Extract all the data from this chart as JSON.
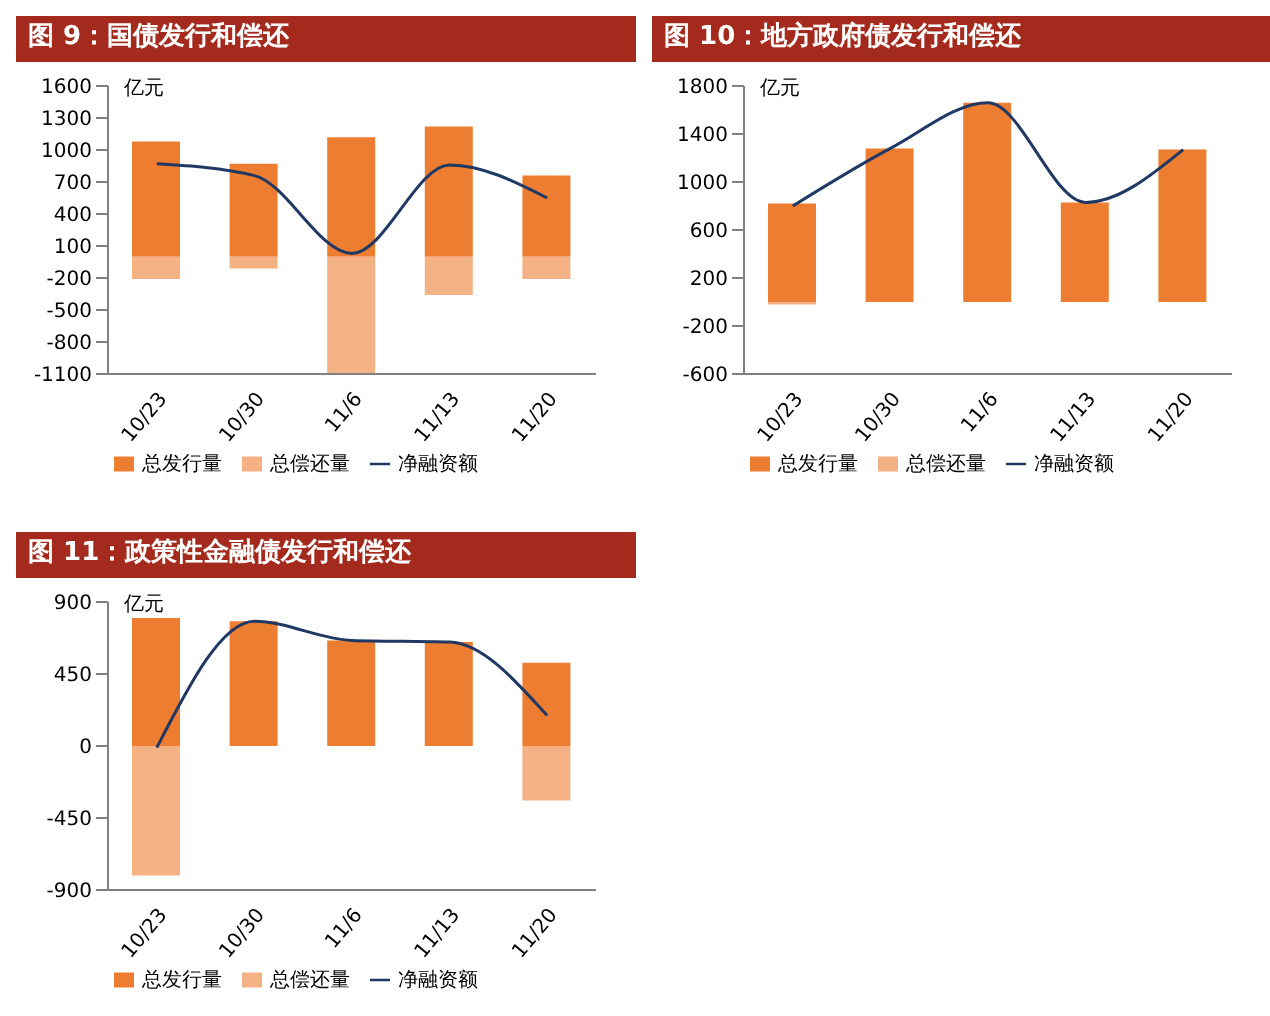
{
  "chart_data": [
    {
      "type": "bar",
      "title": "图 9：国债发行和偿还",
      "ylabel": "亿元",
      "categories": [
        "10/23",
        "10/30",
        "11/6",
        "11/13",
        "11/20"
      ],
      "stacked": true,
      "legend": "bottom",
      "marker": "none",
      "ylim": [
        -1100,
        1600
      ],
      "yticks": [
        -1100,
        -800,
        -500,
        -200,
        100,
        400,
        700,
        1000,
        1300,
        1600
      ],
      "series": [
        {
          "name": "总发行量",
          "type": "bar",
          "color": "#ed7d31",
          "values": [
            1080,
            870,
            1120,
            1220,
            760
          ]
        },
        {
          "name": "总偿还量",
          "type": "bar",
          "color": "#f4b183",
          "values": [
            -210,
            -110,
            -1090,
            -360,
            -210
          ]
        },
        {
          "name": "净融资额",
          "type": "line",
          "color": "#1f3864",
          "values": [
            870,
            760,
            30,
            860,
            550
          ]
        }
      ]
    },
    {
      "type": "bar",
      "title": "图 10：地方政府债发行和偿还",
      "ylabel": "亿元",
      "categories": [
        "10/23",
        "10/30",
        "11/6",
        "11/13",
        "11/20"
      ],
      "stacked": true,
      "legend": "bottom",
      "marker": "none",
      "ylim": [
        -600,
        1800
      ],
      "yticks": [
        -600,
        -200,
        200,
        600,
        1000,
        1400,
        1800
      ],
      "series": [
        {
          "name": "总发行量",
          "type": "bar",
          "color": "#ed7d31",
          "values": [
            820,
            1280,
            1660,
            830,
            1270
          ]
        },
        {
          "name": "总偿还量",
          "type": "bar",
          "color": "#f4b183",
          "values": [
            -20,
            0,
            0,
            0,
            0
          ]
        },
        {
          "name": "净融资额",
          "type": "line",
          "color": "#1f3864",
          "values": [
            800,
            1280,
            1660,
            830,
            1270
          ]
        }
      ]
    },
    {
      "type": "bar",
      "title": "图 11：政策性金融债发行和偿还",
      "ylabel": "亿元",
      "categories": [
        "10/23",
        "10/30",
        "11/6",
        "11/13",
        "11/20"
      ],
      "stacked": true,
      "legend": "bottom",
      "marker": "none",
      "ylim": [
        -900,
        900
      ],
      "yticks": [
        -900,
        -450,
        0,
        450,
        900
      ],
      "series": [
        {
          "name": "总发行量",
          "type": "bar",
          "color": "#ed7d31",
          "values": [
            800,
            780,
            660,
            650,
            520
          ]
        },
        {
          "name": "总偿还量",
          "type": "bar",
          "color": "#f4b183",
          "values": [
            -810,
            0,
            0,
            0,
            -340
          ]
        },
        {
          "name": "净融资额",
          "type": "line",
          "color": "#1f3864",
          "values": [
            -10,
            780,
            660,
            650,
            190
          ]
        }
      ]
    }
  ]
}
